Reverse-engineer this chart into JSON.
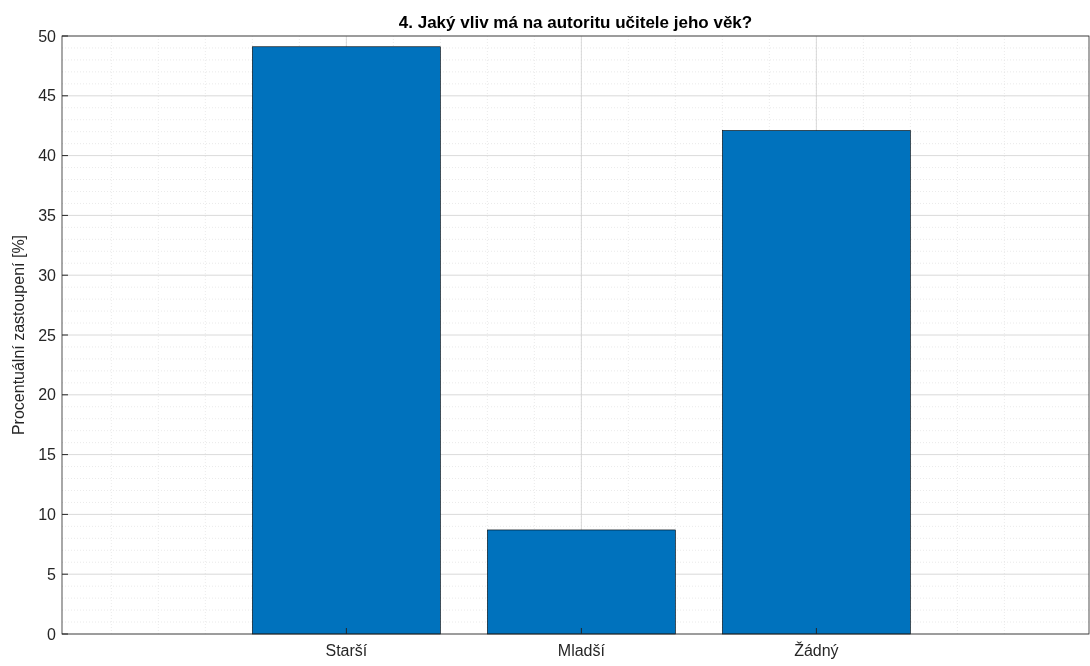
{
  "chart_data": {
    "type": "bar",
    "title": "4. Jaký vliv má na autoritu učitele jeho věk?",
    "ylabel": "Procentuální zastoupení [%]",
    "categories": [
      "Starší",
      "Mladší",
      "Žádný"
    ],
    "values": [
      49.1,
      8.7,
      42.1
    ],
    "color": "#0072bd",
    "ylim": [
      0,
      50
    ],
    "yticks": [
      0,
      5,
      10,
      15,
      20,
      25,
      30,
      35,
      40,
      45,
      50
    ],
    "grid": true
  }
}
